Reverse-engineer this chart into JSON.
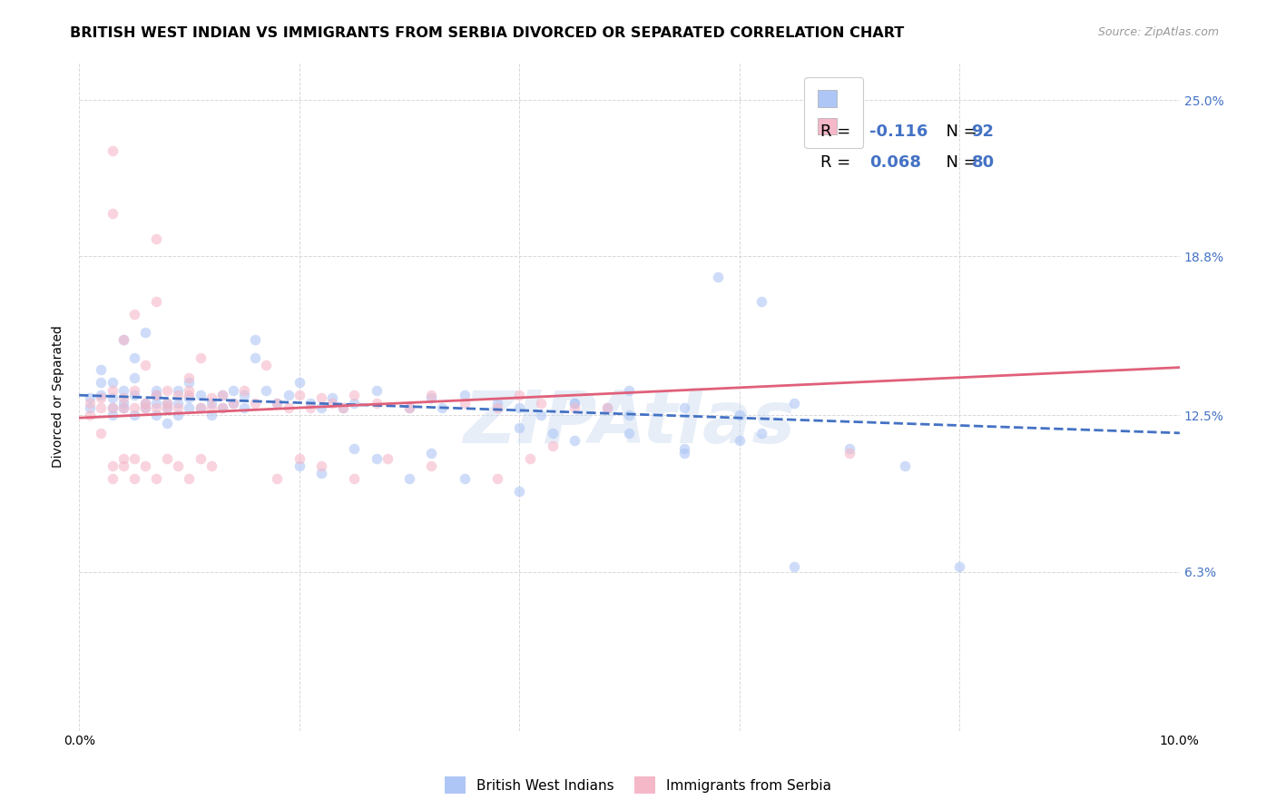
{
  "title": "BRITISH WEST INDIAN VS IMMIGRANTS FROM SERBIA DIVORCED OR SEPARATED CORRELATION CHART",
  "source": "Source: ZipAtlas.com",
  "ylabel": "Divorced or Separated",
  "xmin": 0.0,
  "xmax": 0.1,
  "ymin": 0.0,
  "ymax": 0.265,
  "ytick_vals": [
    0.063,
    0.125,
    0.188,
    0.25
  ],
  "ytick_labels": [
    "6.3%",
    "12.5%",
    "18.8%",
    "25.0%"
  ],
  "xtick_vals": [
    0.0,
    0.02,
    0.04,
    0.06,
    0.08,
    0.1
  ],
  "xtick_labels": [
    "0.0%",
    "",
    "",
    "",
    "",
    "10.0%"
  ],
  "blue_R": "-0.116",
  "blue_N": "92",
  "pink_R": "0.068",
  "pink_N": "80",
  "blue_scatter_x": [
    0.001,
    0.001,
    0.002,
    0.002,
    0.002,
    0.003,
    0.003,
    0.003,
    0.003,
    0.004,
    0.004,
    0.004,
    0.004,
    0.005,
    0.005,
    0.005,
    0.005,
    0.006,
    0.006,
    0.006,
    0.007,
    0.007,
    0.007,
    0.007,
    0.008,
    0.008,
    0.008,
    0.009,
    0.009,
    0.009,
    0.01,
    0.01,
    0.01,
    0.011,
    0.011,
    0.012,
    0.012,
    0.013,
    0.013,
    0.014,
    0.014,
    0.015,
    0.015,
    0.016,
    0.016,
    0.017,
    0.018,
    0.019,
    0.02,
    0.021,
    0.022,
    0.023,
    0.024,
    0.025,
    0.027,
    0.03,
    0.032,
    0.033,
    0.035,
    0.038,
    0.04,
    0.042,
    0.045,
    0.048,
    0.05,
    0.055,
    0.058,
    0.06,
    0.062,
    0.065,
    0.04,
    0.045,
    0.05,
    0.055,
    0.06,
    0.062,
    0.065,
    0.07,
    0.075,
    0.08,
    0.025,
    0.027,
    0.03,
    0.032,
    0.035,
    0.04,
    0.043,
    0.045,
    0.05,
    0.055,
    0.02,
    0.022
  ],
  "blue_scatter_y": [
    0.128,
    0.132,
    0.133,
    0.138,
    0.143,
    0.128,
    0.132,
    0.125,
    0.138,
    0.13,
    0.135,
    0.128,
    0.155,
    0.133,
    0.14,
    0.125,
    0.148,
    0.13,
    0.128,
    0.158,
    0.133,
    0.135,
    0.13,
    0.125,
    0.13,
    0.128,
    0.122,
    0.135,
    0.13,
    0.125,
    0.132,
    0.128,
    0.138,
    0.133,
    0.128,
    0.13,
    0.125,
    0.133,
    0.128,
    0.135,
    0.13,
    0.133,
    0.128,
    0.155,
    0.148,
    0.135,
    0.13,
    0.133,
    0.138,
    0.13,
    0.128,
    0.132,
    0.128,
    0.13,
    0.135,
    0.128,
    0.132,
    0.128,
    0.133,
    0.13,
    0.128,
    0.125,
    0.13,
    0.128,
    0.135,
    0.128,
    0.18,
    0.125,
    0.17,
    0.13,
    0.12,
    0.115,
    0.118,
    0.112,
    0.115,
    0.118,
    0.065,
    0.112,
    0.105,
    0.065,
    0.112,
    0.108,
    0.1,
    0.11,
    0.1,
    0.095,
    0.118,
    0.13,
    0.125,
    0.11,
    0.105,
    0.102
  ],
  "pink_scatter_x": [
    0.001,
    0.001,
    0.002,
    0.002,
    0.002,
    0.003,
    0.003,
    0.003,
    0.003,
    0.004,
    0.004,
    0.004,
    0.005,
    0.005,
    0.005,
    0.006,
    0.006,
    0.006,
    0.007,
    0.007,
    0.007,
    0.007,
    0.008,
    0.008,
    0.008,
    0.009,
    0.009,
    0.01,
    0.01,
    0.01,
    0.011,
    0.011,
    0.012,
    0.012,
    0.013,
    0.013,
    0.014,
    0.015,
    0.016,
    0.017,
    0.018,
    0.019,
    0.02,
    0.021,
    0.022,
    0.023,
    0.024,
    0.025,
    0.027,
    0.03,
    0.032,
    0.035,
    0.038,
    0.04,
    0.042,
    0.045,
    0.048,
    0.003,
    0.003,
    0.004,
    0.004,
    0.005,
    0.005,
    0.006,
    0.007,
    0.008,
    0.009,
    0.01,
    0.011,
    0.012,
    0.018,
    0.02,
    0.022,
    0.025,
    0.028,
    0.032,
    0.038,
    0.041,
    0.043,
    0.07
  ],
  "pink_scatter_y": [
    0.125,
    0.13,
    0.118,
    0.128,
    0.132,
    0.135,
    0.128,
    0.205,
    0.23,
    0.128,
    0.132,
    0.155,
    0.135,
    0.128,
    0.165,
    0.13,
    0.128,
    0.145,
    0.133,
    0.128,
    0.195,
    0.17,
    0.135,
    0.13,
    0.128,
    0.133,
    0.128,
    0.135,
    0.14,
    0.133,
    0.128,
    0.148,
    0.132,
    0.128,
    0.133,
    0.128,
    0.13,
    0.135,
    0.13,
    0.145,
    0.13,
    0.128,
    0.133,
    0.128,
    0.132,
    0.13,
    0.128,
    0.133,
    0.13,
    0.128,
    0.133,
    0.13,
    0.128,
    0.133,
    0.13,
    0.128,
    0.128,
    0.105,
    0.1,
    0.108,
    0.105,
    0.1,
    0.108,
    0.105,
    0.1,
    0.108,
    0.105,
    0.1,
    0.108,
    0.105,
    0.1,
    0.108,
    0.105,
    0.1,
    0.108,
    0.105,
    0.1,
    0.108,
    0.113,
    0.11
  ],
  "blue_trend_x0": 0.0,
  "blue_trend_x1": 0.1,
  "blue_trend_y0": 0.133,
  "blue_trend_y1": 0.118,
  "pink_trend_x0": 0.0,
  "pink_trend_x1": 0.1,
  "pink_trend_y0": 0.124,
  "pink_trend_y1": 0.144,
  "watermark": "ZIPAtlas",
  "scatter_size": 70,
  "scatter_alpha": 0.6,
  "blue_scatter_color": "#aec6f5",
  "pink_scatter_color": "#f5b8c8",
  "blue_line_color": "#4472c4",
  "pink_line_color": "#e0607a",
  "background_color": "#ffffff",
  "grid_color": "#d8d8d8",
  "right_tick_color": "#4472c4",
  "title_fontsize": 11.5,
  "tick_fontsize": 10,
  "legend_R_N_color": "#4472c4"
}
